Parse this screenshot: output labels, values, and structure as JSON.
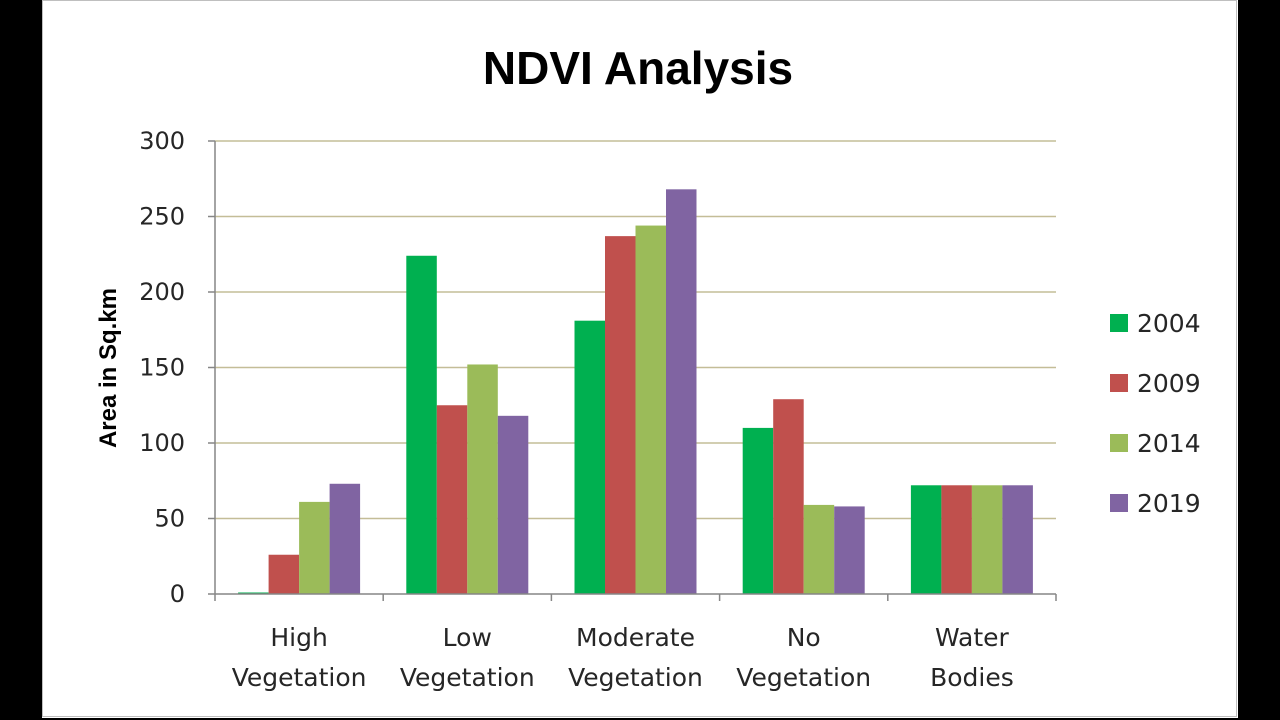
{
  "chart_data": {
    "type": "bar",
    "title": "NDVI Analysis",
    "xlabel": "",
    "ylabel": "Area in Sq.km",
    "ylim": [
      0,
      300
    ],
    "yticks": [
      0,
      50,
      100,
      150,
      200,
      250,
      300
    ],
    "grid": true,
    "legend_position": "right",
    "categories": [
      [
        "High",
        "Vegetation"
      ],
      [
        "Low",
        "Vegetation"
      ],
      [
        "Moderate",
        "Vegetation"
      ],
      [
        "No",
        "Vegetation"
      ],
      [
        "Water",
        "Bodies"
      ]
    ],
    "series": [
      {
        "name": "2004",
        "color": "#00b050",
        "values": [
          1,
          224,
          181,
          110,
          72
        ]
      },
      {
        "name": "2009",
        "color": "#c0504d",
        "values": [
          26,
          125,
          237,
          129,
          72
        ]
      },
      {
        "name": "2014",
        "color": "#9bbb59",
        "values": [
          61,
          152,
          244,
          59,
          72
        ]
      },
      {
        "name": "2019",
        "color": "#8064a2",
        "values": [
          73,
          118,
          268,
          58,
          72
        ]
      }
    ]
  },
  "colors": {
    "gridline": "#c4bd97",
    "axis": "#868686",
    "background": "#ffffff",
    "outer": "#000000"
  }
}
